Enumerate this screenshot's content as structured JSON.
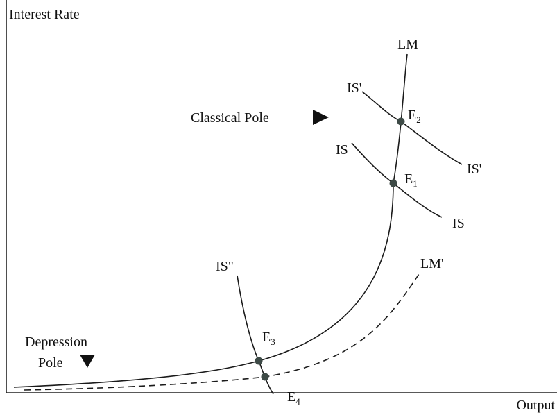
{
  "axes": {
    "y_label": "Interest Rate",
    "x_label": "Output"
  },
  "curves": {
    "lm": "LM",
    "lm_prime": "LM'",
    "is": "IS",
    "is_prime": "IS'",
    "is_double_prime": "IS\""
  },
  "poles": {
    "classical": "Classical Pole",
    "depression_line1": "Depression",
    "depression_line2": "Pole"
  },
  "equilibria": [
    {
      "letter": "E",
      "sub": "1"
    },
    {
      "letter": "E",
      "sub": "2"
    },
    {
      "letter": "E",
      "sub": "3"
    },
    {
      "letter": "E",
      "sub": "4"
    }
  ],
  "colors": {
    "ink": "#1a1a1a",
    "point": "#3d4a46"
  }
}
